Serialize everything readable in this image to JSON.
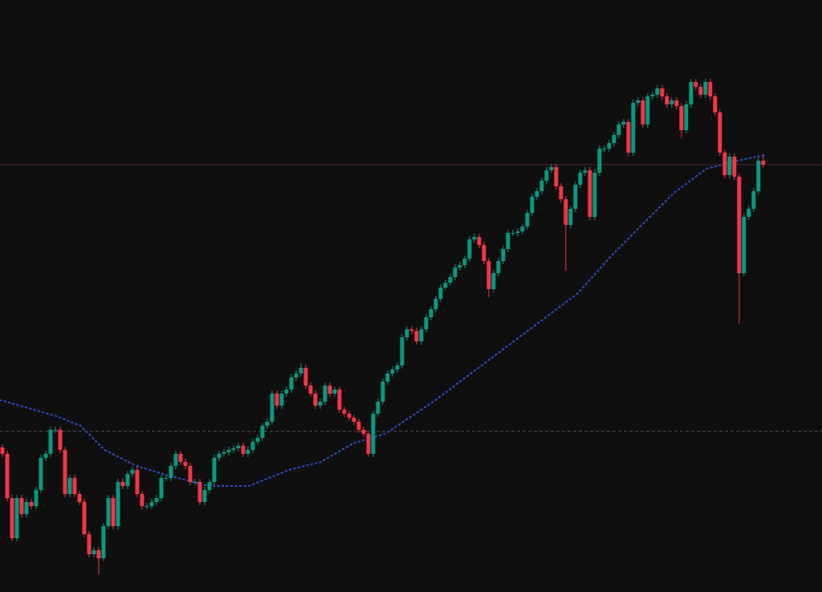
{
  "chart_data": {
    "type": "candlestick",
    "background": "#0f0f0f",
    "up_color": "#089981",
    "down_color": "#f23645",
    "xlim": [
      -0.5,
      170.2
    ],
    "ylim": [
      0,
      737
    ],
    "open": [
      180,
      172,
      117,
      67,
      117,
      97,
      112,
      107,
      127,
      167,
      172,
      202,
      202,
      177,
      122,
      142,
      122,
      112,
      72,
      47,
      52,
      42,
      82,
      117,
      82,
      137,
      132,
      147,
      152,
      122,
      107,
      107,
      112,
      117,
      142,
      142,
      157,
      172,
      162,
      157,
      137,
      137,
      112,
      127,
      137,
      167,
      172,
      174,
      177,
      179,
      182,
      172,
      177,
      187,
      192,
      207,
      212,
      247,
      232,
      247,
      252,
      267,
      272,
      279,
      257,
      247,
      232,
      237,
      257,
      247,
      252,
      227,
      222,
      217,
      212,
      202,
      197,
      172,
      222,
      237,
      262,
      272,
      277,
      282,
      317,
      327,
      325,
      312,
      327,
      342,
      352,
      365,
      379,
      385,
      392,
      404,
      407,
      415,
      439,
      442,
      432,
      412,
      377,
      397,
      412,
      427,
      447,
      447,
      449,
      455,
      472,
      492,
      499,
      512,
      525,
      529,
      505,
      489,
      457,
      477,
      507,
      522,
      525,
      467,
      522,
      552,
      552,
      559,
      569,
      582,
      585,
      547,
      609,
      612,
      582,
      617,
      619,
      627,
      617,
      607,
      612,
      605,
      575,
      607,
      635,
      629,
      619,
      635,
      617,
      597,
      547,
      519,
      542,
      517,
      397,
      467,
      477,
      499,
      537
    ],
    "high": [
      184,
      176,
      121,
      121,
      121,
      116,
      116,
      131,
      171,
      176,
      206,
      206,
      206,
      181,
      146,
      146,
      126,
      116,
      76,
      56,
      56,
      86,
      121,
      121,
      141,
      141,
      151,
      156,
      156,
      126,
      111,
      116,
      121,
      146,
      146,
      161,
      176,
      176,
      166,
      161,
      141,
      141,
      131,
      141,
      171,
      176,
      178,
      181,
      183,
      186,
      186,
      181,
      191,
      196,
      211,
      216,
      251,
      251,
      251,
      256,
      271,
      276,
      285,
      283,
      261,
      251,
      241,
      261,
      261,
      256,
      256,
      231,
      226,
      221,
      216,
      206,
      201,
      226,
      241,
      266,
      276,
      281,
      286,
      321,
      331,
      331,
      329,
      331,
      346,
      356,
      369,
      383,
      389,
      396,
      408,
      411,
      419,
      443,
      446,
      446,
      436,
      416,
      401,
      416,
      431,
      451,
      451,
      453,
      459,
      476,
      496,
      503,
      516,
      529,
      533,
      533,
      509,
      493,
      481,
      511,
      526,
      529,
      529,
      526,
      556,
      556,
      563,
      573,
      586,
      589,
      589,
      613,
      616,
      616,
      621,
      623,
      631,
      631,
      621,
      616,
      616,
      609,
      611,
      639,
      639,
      633,
      639,
      639,
      621,
      601,
      551,
      546,
      546,
      521,
      471,
      481,
      503,
      541,
      544
    ],
    "low": [
      168,
      113,
      63,
      63,
      93,
      93,
      103,
      103,
      123,
      163,
      168,
      198,
      173,
      118,
      118,
      118,
      108,
      68,
      43,
      43,
      22,
      38,
      78,
      78,
      78,
      128,
      128,
      143,
      118,
      103,
      103,
      103,
      108,
      113,
      138,
      138,
      153,
      158,
      153,
      133,
      133,
      108,
      108,
      123,
      133,
      163,
      168,
      170,
      173,
      175,
      168,
      168,
      173,
      183,
      188,
      203,
      208,
      228,
      228,
      243,
      248,
      263,
      268,
      253,
      243,
      228,
      228,
      233,
      243,
      243,
      223,
      218,
      213,
      208,
      198,
      193,
      168,
      168,
      218,
      233,
      258,
      268,
      273,
      278,
      313,
      321,
      308,
      308,
      323,
      338,
      348,
      361,
      375,
      381,
      388,
      400,
      403,
      411,
      435,
      428,
      408,
      367,
      373,
      393,
      408,
      423,
      443,
      443,
      445,
      451,
      468,
      488,
      495,
      508,
      521,
      501,
      485,
      400,
      453,
      473,
      503,
      518,
      463,
      463,
      518,
      548,
      548,
      555,
      565,
      578,
      543,
      543,
      605,
      578,
      578,
      613,
      615,
      613,
      603,
      603,
      601,
      565,
      571,
      603,
      625,
      615,
      615,
      613,
      593,
      543,
      515,
      515,
      513,
      334,
      393,
      463,
      473,
      495,
      528
    ],
    "close": [
      172,
      117,
      67,
      117,
      97,
      112,
      107,
      127,
      167,
      172,
      202,
      202,
      177,
      122,
      142,
      122,
      112,
      72,
      47,
      52,
      42,
      82,
      117,
      82,
      137,
      132,
      147,
      152,
      122,
      107,
      107,
      112,
      117,
      142,
      142,
      157,
      172,
      162,
      157,
      137,
      137,
      112,
      127,
      137,
      167,
      172,
      174,
      177,
      179,
      182,
      172,
      177,
      187,
      192,
      207,
      212,
      247,
      232,
      247,
      252,
      267,
      272,
      279,
      257,
      247,
      232,
      237,
      257,
      247,
      252,
      227,
      222,
      217,
      212,
      202,
      197,
      172,
      222,
      237,
      262,
      272,
      277,
      282,
      317,
      327,
      325,
      312,
      327,
      342,
      352,
      365,
      379,
      385,
      392,
      404,
      407,
      415,
      439,
      442,
      432,
      412,
      377,
      397,
      412,
      427,
      447,
      447,
      449,
      455,
      472,
      492,
      499,
      512,
      525,
      529,
      505,
      489,
      457,
      477,
      507,
      522,
      525,
      467,
      522,
      552,
      552,
      559,
      569,
      582,
      585,
      547,
      609,
      612,
      582,
      617,
      619,
      627,
      617,
      607,
      612,
      605,
      575,
      607,
      635,
      629,
      619,
      635,
      617,
      597,
      547,
      519,
      542,
      517,
      397,
      467,
      477,
      499,
      537,
      532
    ],
    "moving_average": {
      "color": "#2f4fcf",
      "x": [
        -0.5,
        11.2,
        16.2,
        21.2,
        27.8,
        34.5,
        42.8,
        51.2,
        59.5,
        66.2,
        72.8,
        79.5,
        89.5,
        99.5,
        109.5,
        119.5,
        126.2,
        132.8,
        139.5,
        146.2,
        152.8,
        158.2
      ],
      "values": [
        239,
        219,
        207,
        177,
        157,
        145,
        132,
        132,
        152,
        162,
        185,
        197,
        237,
        282,
        327,
        372,
        417,
        457,
        497,
        527,
        537,
        544
      ]
    },
    "levels": [
      {
        "value": 532,
        "color": "#5a2328",
        "style": "solid"
      },
      {
        "value": 200,
        "color": "#555555",
        "style": "dashed"
      }
    ]
  }
}
